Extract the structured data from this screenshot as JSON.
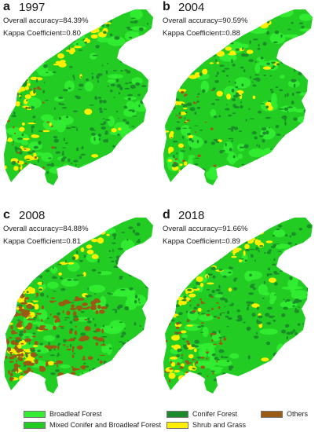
{
  "panels": [
    {
      "letter": "a",
      "year": "1997",
      "accuracy": "Overall accuracy=84.39%",
      "kappa": "Kappa Coefficient=0.80",
      "others_level": 0.05,
      "shrub_level": 0.35
    },
    {
      "letter": "b",
      "year": "2004",
      "accuracy": "Overall accuracy=90.59%",
      "kappa": "Kappa Coefficient=0.88",
      "others_level": 0.04,
      "shrub_level": 0.25
    },
    {
      "letter": "c",
      "year": "2008",
      "accuracy": "Overall accuracy=84.88%",
      "kappa": "Kappa Coefficient=0.81",
      "others_level": 0.6,
      "shrub_level": 0.45
    },
    {
      "letter": "d",
      "year": "2018",
      "accuracy": "Overall accuracy=91.66%",
      "kappa": "Kappa Coefficient=0.89",
      "others_level": 0.15,
      "shrub_level": 0.4
    }
  ],
  "legend": {
    "broadleaf": {
      "label": "Broadleaf Forest",
      "color": "#33ee33"
    },
    "mixed": {
      "label": "Mixed Conifer and Broadleaf Forest",
      "color": "#22cc22"
    },
    "conifer": {
      "label": "Conifer Forest",
      "color": "#1b8a2a"
    },
    "shrub": {
      "label": "Shrub and Grass",
      "color": "#ffee00"
    },
    "others": {
      "label": "Others",
      "color": "#9a5a14"
    }
  }
}
